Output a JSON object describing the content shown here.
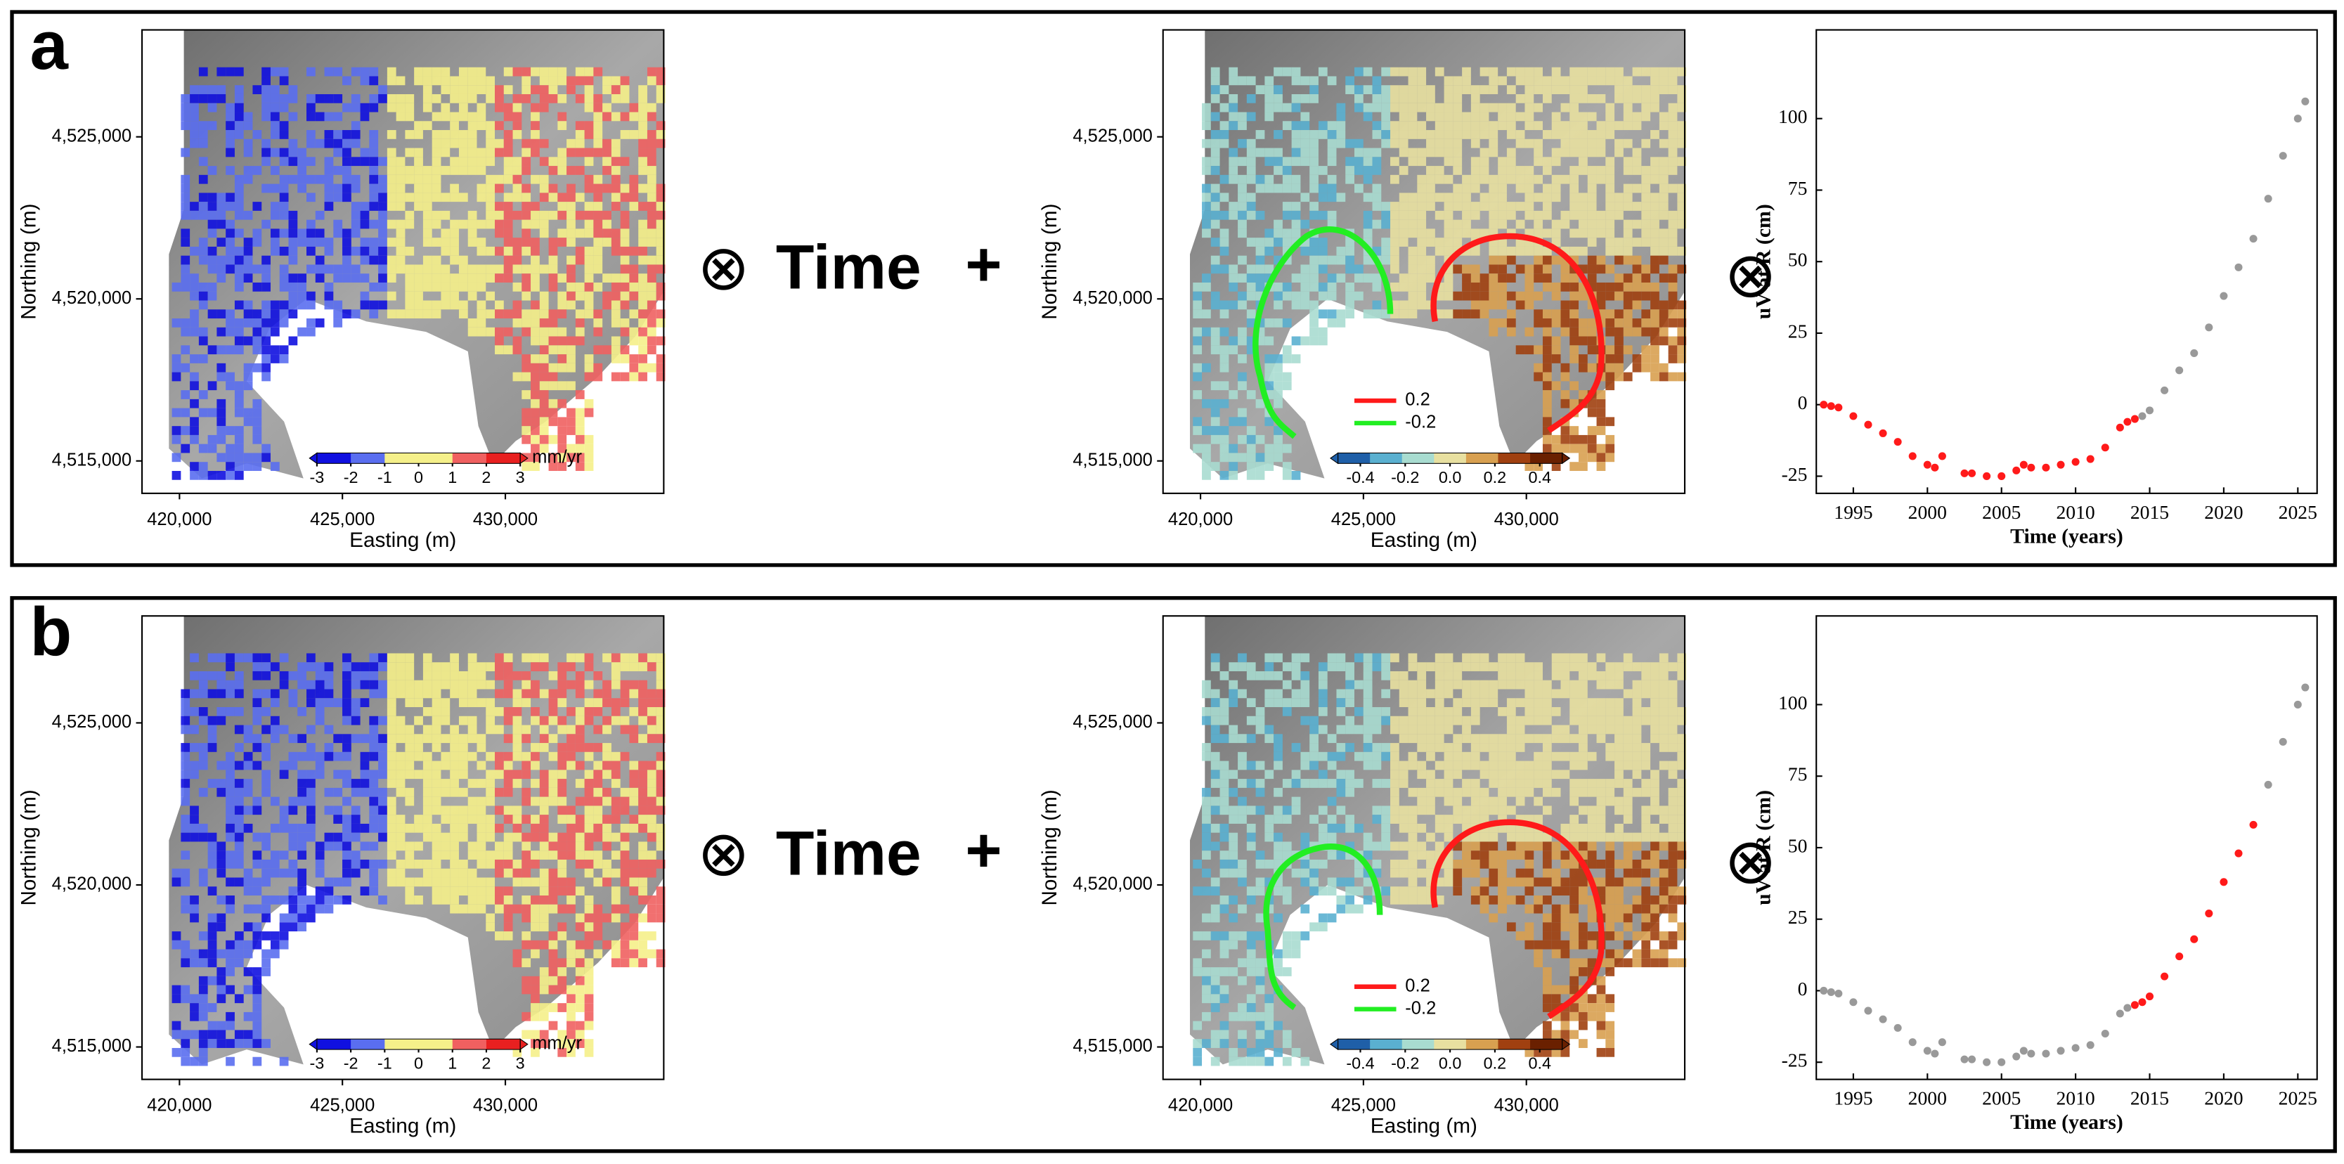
{
  "panels": [
    {
      "label": "a",
      "operator_1": "⊗",
      "time": "Time",
      "plus": "+",
      "operator_2": "⊗"
    },
    {
      "label": "b",
      "operator_1": "⊗",
      "time": "Time",
      "plus": "+",
      "operator_2": "⊗"
    }
  ],
  "maps": [
    {
      "xlabel": "Easting (m)",
      "ylabel": "Northing (m)",
      "xlim": [
        418850,
        434860
      ],
      "ylim": [
        4514000,
        4528300
      ],
      "xticks": [
        {
          "value": 420000,
          "label": "420,000"
        },
        {
          "value": 425000,
          "label": "425,000"
        },
        {
          "value": 430000,
          "label": "430,000"
        }
      ],
      "yticks": [
        {
          "value": 4515000,
          "label": "4,515,000"
        },
        {
          "value": 4520000,
          "label": "4,520,000"
        },
        {
          "value": 4525000,
          "label": "4,525,000"
        }
      ],
      "colorbar": {
        "lim": [
          -3,
          3
        ],
        "colors": [
          "#1010e0",
          "#5a6ef0",
          "#f5f08a",
          "#f5f08a",
          "#f06060",
          "#e82020"
        ],
        "ticks": [
          -3,
          -2,
          -1,
          0,
          1,
          2,
          3
        ],
        "unit": "mm/yr"
      }
    },
    {
      "xlabel": "Easting (m)",
      "ylabel": "Northing (m)",
      "xlim": [
        418850,
        434860
      ],
      "ylim": [
        4514000,
        4528300
      ],
      "xticks": [
        {
          "value": 420000,
          "label": "420,000"
        },
        {
          "value": 425000,
          "label": "425,000"
        },
        {
          "value": 430000,
          "label": "430,000"
        }
      ],
      "yticks": [
        {
          "value": 4515000,
          "label": "4,515,000"
        },
        {
          "value": 4520000,
          "label": "4,520,000"
        },
        {
          "value": 4525000,
          "label": "4,525,000"
        }
      ],
      "colorbar": {
        "lim": [
          -0.5,
          0.5
        ],
        "colors": [
          "#1f5fa8",
          "#5ab0d0",
          "#a8dcd0",
          "#e8e0a0",
          "#d8a050",
          "#a04010",
          "#6a2000"
        ],
        "ticks": [
          -0.4,
          -0.2,
          {
            "value": 0,
            "label": "0.0"
          },
          0.2,
          0.4
        ]
      },
      "legend": [
        {
          "label": "0.2",
          "color": "#ff1a1a"
        },
        {
          "label": "-0.2",
          "color": "#22ee22"
        }
      ]
    },
    {
      "xlabel": "Easting (m)",
      "ylabel": "Northing (m)",
      "xlim": [
        418850,
        434860
      ],
      "ylim": [
        4514000,
        4528300
      ],
      "xticks": [
        {
          "value": 420000,
          "label": "420,000"
        },
        {
          "value": 425000,
          "label": "425,000"
        },
        {
          "value": 430000,
          "label": "430,000"
        }
      ],
      "yticks": [
        {
          "value": 4515000,
          "label": "4,515,000"
        },
        {
          "value": 4520000,
          "label": "4,520,000"
        },
        {
          "value": 4525000,
          "label": "4,525,000"
        }
      ],
      "colorbar": {
        "lim": [
          -3,
          3
        ],
        "colors": [
          "#1010e0",
          "#5a6ef0",
          "#f5f08a",
          "#f5f08a",
          "#f06060",
          "#e82020"
        ],
        "ticks": [
          -3,
          -2,
          -1,
          0,
          1,
          2,
          3
        ],
        "unit": "mm/yr"
      }
    },
    {
      "xlabel": "Easting (m)",
      "ylabel": "Northing (m)",
      "xlim": [
        418850,
        434860
      ],
      "ylim": [
        4514000,
        4528300
      ],
      "xticks": [
        {
          "value": 420000,
          "label": "420,000"
        },
        {
          "value": 425000,
          "label": "425,000"
        },
        {
          "value": 430000,
          "label": "430,000"
        }
      ],
      "yticks": [
        {
          "value": 4515000,
          "label": "4,515,000"
        },
        {
          "value": 4520000,
          "label": "4,520,000"
        },
        {
          "value": 4525000,
          "label": "4,525,000"
        }
      ],
      "colorbar": {
        "lim": [
          -0.5,
          0.5
        ],
        "colors": [
          "#1f5fa8",
          "#5ab0d0",
          "#a8dcd0",
          "#e8e0a0",
          "#d8a050",
          "#a04010",
          "#6a2000"
        ],
        "ticks": [
          -0.4,
          -0.2,
          {
            "value": 0,
            "label": "0.0"
          },
          0.2,
          0.4
        ]
      },
      "legend": [
        {
          "label": "0.2",
          "color": "#ff1a1a"
        },
        {
          "label": "-0.2",
          "color": "#22ee22"
        }
      ]
    }
  ],
  "chart_data": [
    {
      "type": "scatter",
      "xlabel": "Time (years)",
      "ylabel": "uV at R (cm)",
      "xlim": [
        1992.5,
        2026.3
      ],
      "ylim": [
        -31,
        131
      ],
      "xticks": [
        1995,
        2000,
        2005,
        2010,
        2015,
        2020,
        2025
      ],
      "yticks": [
        -25,
        0,
        25,
        50,
        75,
        100
      ],
      "series": [
        {
          "color": "#ff1a1a",
          "x": [
            1993,
            1993.5,
            1994,
            1995,
            1996,
            1997,
            1998,
            1999,
            2000,
            2000.5,
            2001,
            2002.5,
            2003,
            2004,
            2005,
            2006,
            2006.5,
            2007,
            2008,
            2009,
            2010,
            2011,
            2012,
            2013,
            2013.5,
            2014
          ],
          "values": [
            0,
            -0.5,
            -1,
            -4,
            -7,
            -10,
            -13,
            -18,
            -21,
            -22,
            -18,
            -24,
            -24,
            -25,
            -25,
            -23,
            -21,
            -22,
            -22,
            -21,
            -20,
            -19,
            -15,
            -8,
            -6,
            -5
          ]
        },
        {
          "color": "#999999",
          "x": [
            2014.5,
            2015,
            2016,
            2017,
            2018,
            2019,
            2020,
            2021,
            2022,
            2023,
            2024,
            2025,
            2025.5
          ],
          "values": [
            -4,
            -2,
            5,
            12,
            18,
            27,
            38,
            48,
            58,
            72,
            87,
            100,
            106
          ]
        }
      ]
    },
    {
      "type": "scatter",
      "xlabel": "Time (years)",
      "ylabel": "uV at R (cm)",
      "xlim": [
        1992.5,
        2026.3
      ],
      "ylim": [
        -31,
        131
      ],
      "xticks": [
        1995,
        2000,
        2005,
        2010,
        2015,
        2020,
        2025
      ],
      "yticks": [
        -25,
        0,
        25,
        50,
        75,
        100
      ],
      "series": [
        {
          "color": "#999999",
          "x": [
            1993,
            1993.5,
            1994,
            1995,
            1996,
            1997,
            1998,
            1999,
            2000,
            2000.5,
            2001,
            2002.5,
            2003,
            2004,
            2005,
            2006,
            2006.5,
            2007,
            2008,
            2009,
            2010,
            2011,
            2012,
            2013,
            2013.5
          ],
          "values": [
            0,
            -0.5,
            -1,
            -4,
            -7,
            -10,
            -13,
            -18,
            -21,
            -22,
            -18,
            -24,
            -24,
            -25,
            -25,
            -23,
            -21,
            -22,
            -22,
            -21,
            -20,
            -19,
            -15,
            -8,
            -6
          ]
        },
        {
          "color": "#ff1a1a",
          "x": [
            2014,
            2014.5,
            2015,
            2016,
            2017,
            2018,
            2019,
            2020,
            2021,
            2022
          ],
          "values": [
            -5,
            -4,
            -2,
            5,
            12,
            18,
            27,
            38,
            48,
            58
          ]
        },
        {
          "color": "#999999",
          "x": [
            2023,
            2024,
            2025,
            2025.5
          ],
          "values": [
            72,
            87,
            100,
            106
          ]
        }
      ]
    }
  ]
}
